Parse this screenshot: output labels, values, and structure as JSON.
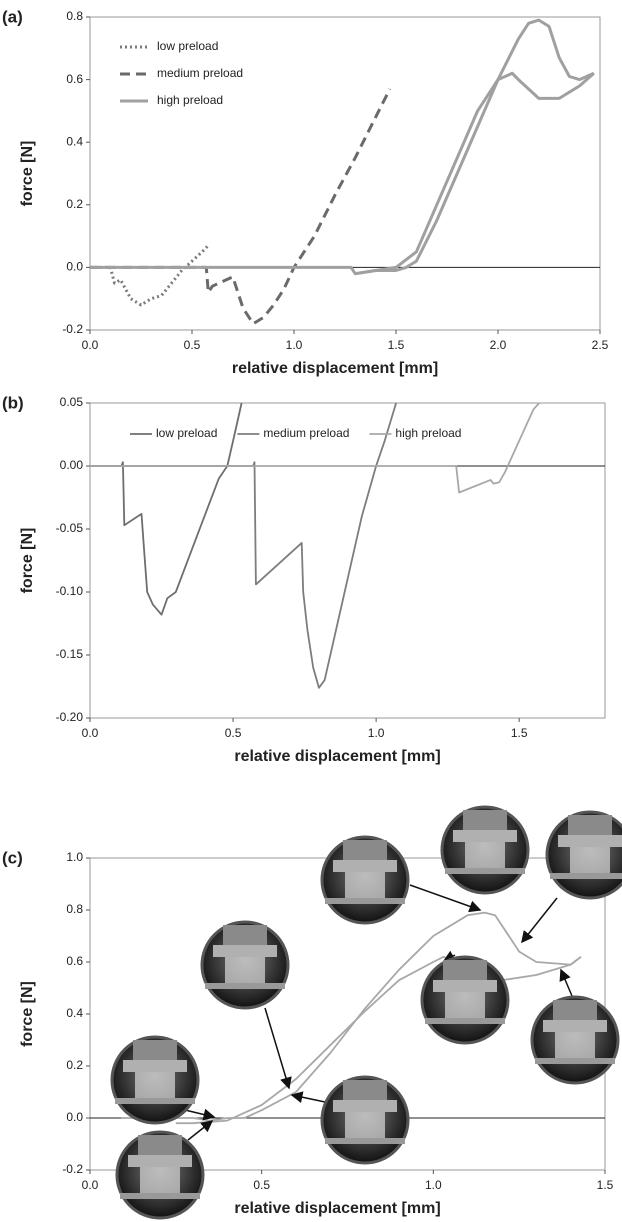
{
  "chart_data": [
    {
      "type": "line",
      "panel_label": "(a)",
      "x_label": "relative displacement [mm]",
      "y_label": "force [N]",
      "xlim": [
        0,
        2.5
      ],
      "xticks": [
        {
          "value": 0,
          "label": "0.0"
        },
        0.5,
        {
          "value": 1,
          "label": "1.0"
        },
        1.5,
        {
          "value": 2,
          "label": "2.0"
        },
        2.5
      ],
      "ylim": [
        -0.2,
        0.8
      ],
      "yticks": [
        -0.2,
        {
          "value": 0,
          "label": "0.0"
        },
        0.2,
        0.4,
        0.6,
        0.8
      ],
      "legend": "upper left",
      "zero_line": true,
      "series": [
        {
          "name": "low preload",
          "color": "#7a7a7a",
          "line_style": "dotted",
          "x": [
            0,
            0.1,
            0.12,
            0.15,
            0.2,
            0.25,
            0.3,
            0.35,
            0.4,
            0.45,
            0.5,
            0.55,
            0.58
          ],
          "values": [
            0,
            0,
            -0.05,
            -0.04,
            -0.1,
            -0.12,
            -0.1,
            -0.09,
            -0.05,
            -0.01,
            0.02,
            0.05,
            0.07
          ]
        },
        {
          "name": "medium preload",
          "color": "#6a6a6a",
          "line_style": "dashed",
          "x": [
            0,
            0.57,
            0.58,
            0.6,
            0.7,
            0.75,
            0.8,
            0.85,
            0.9,
            0.95,
            1.0,
            1.1,
            1.2,
            1.3,
            1.4,
            1.47
          ],
          "values": [
            0,
            0,
            -0.08,
            -0.06,
            -0.03,
            -0.13,
            -0.18,
            -0.16,
            -0.12,
            -0.07,
            0,
            0.1,
            0.23,
            0.35,
            0.48,
            0.57
          ]
        },
        {
          "name": "high preload",
          "color": "#a0a0a0",
          "line_style": "solid",
          "x": [
            0,
            1.28,
            1.3,
            1.4,
            1.5,
            1.55,
            1.6,
            1.7,
            1.8,
            1.9,
            2.0,
            2.1,
            2.15,
            2.2,
            2.25,
            2.3,
            2.35,
            2.4,
            2.47,
            null,
            1.3,
            1.4,
            1.5,
            1.6,
            1.7,
            1.8,
            1.9,
            2.0,
            2.07,
            2.1,
            2.2,
            2.3,
            2.4,
            2.47
          ],
          "values": [
            0,
            0,
            -0.02,
            -0.01,
            -0.01,
            0,
            0.02,
            0.15,
            0.3,
            0.45,
            0.6,
            0.73,
            0.78,
            0.79,
            0.77,
            0.67,
            0.61,
            0.6,
            0.62,
            null,
            -0.02,
            -0.01,
            0,
            0.05,
            0.2,
            0.35,
            0.5,
            0.6,
            0.62,
            0.6,
            0.54,
            0.54,
            0.58,
            0.62
          ]
        }
      ]
    },
    {
      "type": "line",
      "panel_label": "(b)",
      "x_label": "relative displacement [mm]",
      "y_label": "force [N]",
      "xlim": [
        0,
        1.8
      ],
      "xticks": [
        {
          "value": 0,
          "label": "0.0"
        },
        0.5,
        {
          "value": 1,
          "label": "1.0"
        },
        1.5
      ],
      "ylim": [
        -0.2,
        0.05
      ],
      "yticks": [
        {
          "value": -0.2,
          "label": "-0.20"
        },
        -0.15,
        {
          "value": -0.1,
          "label": "-0.10"
        },
        -0.05,
        {
          "value": 0,
          "label": "0.00"
        },
        0.05
      ],
      "legend": "top",
      "zero_line": true,
      "series": [
        {
          "name": "low preload",
          "color": "#6e6e6e",
          "line_style": "solid",
          "x": [
            0,
            0.11,
            0.115,
            0.12,
            0.18,
            0.19,
            0.2,
            0.22,
            0.25,
            0.27,
            0.3,
            0.35,
            0.4,
            0.45,
            0.48,
            0.5,
            0.53
          ],
          "values": [
            0,
            0,
            0.003,
            -0.047,
            -0.038,
            -0.07,
            -0.1,
            -0.11,
            -0.118,
            -0.105,
            -0.1,
            -0.07,
            -0.04,
            -0.01,
            0,
            0.02,
            0.05
          ]
        },
        {
          "name": "medium preload",
          "color": "#7d7d7d",
          "line_style": "solid",
          "x": [
            0,
            0.57,
            0.575,
            0.58,
            0.74,
            0.745,
            0.76,
            0.78,
            0.8,
            0.82,
            0.85,
            0.9,
            0.95,
            1.0,
            1.03,
            1.07
          ],
          "values": [
            0,
            0,
            0.003,
            -0.094,
            -0.061,
            -0.1,
            -0.13,
            -0.16,
            -0.176,
            -0.17,
            -0.14,
            -0.09,
            -0.04,
            0,
            0.02,
            0.05
          ]
        },
        {
          "name": "high preload",
          "color": "#a8a8a8",
          "line_style": "solid",
          "x": [
            0,
            1.28,
            1.29,
            1.4,
            1.41,
            1.43,
            1.45,
            1.5,
            1.55,
            1.57
          ],
          "values": [
            0,
            0,
            -0.021,
            -0.011,
            -0.014,
            -0.013,
            -0.005,
            0.02,
            0.045,
            0.05
          ]
        }
      ]
    },
    {
      "type": "line",
      "panel_label": "(c)",
      "x_label": "relative displacement [mm]",
      "y_label": "force [N]",
      "xlim": [
        0,
        1.5
      ],
      "xticks": [
        {
          "value": 0,
          "label": "0.0"
        },
        0.5,
        {
          "value": 1,
          "label": "1.0"
        },
        1.5
      ],
      "ylim": [
        -0.2,
        1
      ],
      "yticks": [
        -0.2,
        {
          "value": 0,
          "label": "0.0"
        },
        0.2,
        0.4,
        0.6,
        0.8,
        {
          "value": 1,
          "label": "1.0"
        }
      ],
      "zero_line": true,
      "series": [
        {
          "color": "#a8a8a8",
          "line_style": "solid",
          "x": [
            0.09,
            0.3,
            0.35,
            0.4,
            0.45,
            0.5,
            0.6,
            0.7,
            0.8,
            0.9,
            1.0,
            1.1,
            1.15,
            1.18,
            1.2,
            1.25,
            1.3,
            1.4,
            1.43,
            null,
            0.25,
            0.3,
            0.4,
            0.5,
            0.6,
            0.7,
            0.8,
            0.9,
            1.0,
            1.03,
            1.06,
            1.1,
            1.2,
            1.3,
            1.4,
            1.43
          ],
          "values": [
            0,
            0,
            -0.01,
            0,
            0,
            0.03,
            0.1,
            0.25,
            0.42,
            0.57,
            0.7,
            0.78,
            0.79,
            0.78,
            0.74,
            0.64,
            0.6,
            0.59,
            0.62,
            null,
            -0.02,
            -0.02,
            -0.01,
            0.05,
            0.15,
            0.28,
            0.41,
            0.53,
            0.6,
            0.62,
            0.6,
            0.55,
            0.53,
            0.55,
            0.59,
            0.62
          ]
        }
      ]
    }
  ]
}
